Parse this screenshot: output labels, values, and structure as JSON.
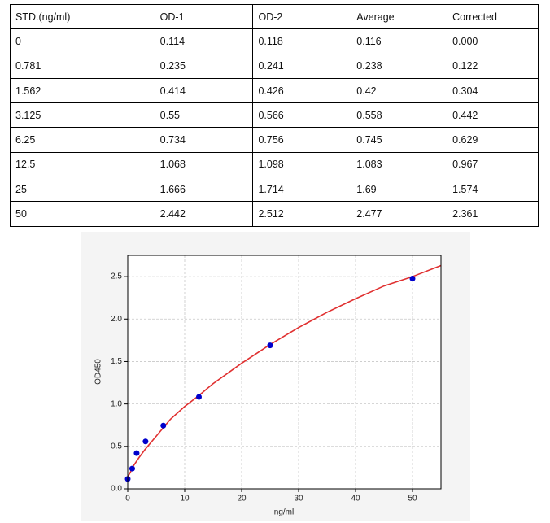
{
  "table": {
    "header": [
      "STD.(ng/ml)",
      "OD-1",
      "OD-2",
      "Average",
      "Corrected"
    ],
    "rows": [
      [
        "0",
        "0.114",
        "0.118",
        "0.116",
        "0.000"
      ],
      [
        "0.781",
        "0.235",
        "0.241",
        "0.238",
        "0.122"
      ],
      [
        "1.562",
        "0.414",
        "0.426",
        "0.42",
        "0.304"
      ],
      [
        "3.125",
        "0.55",
        "0.566",
        "0.558",
        "0.442"
      ],
      [
        "6.25",
        "0.734",
        "0.756",
        "0.745",
        "0.629"
      ],
      [
        "12.5",
        "1.068",
        "1.098",
        "1.083",
        "0.967"
      ],
      [
        "25",
        "1.666",
        "1.714",
        "1.69",
        "1.574"
      ],
      [
        "50",
        "2.442",
        "2.512",
        "2.477",
        "2.361"
      ]
    ]
  },
  "chart_data": {
    "type": "scatter",
    "xlabel": "ng/ml",
    "ylabel": "OD450",
    "xlim": [
      0,
      55
    ],
    "ylim": [
      0,
      2.75
    ],
    "xticks": [
      0,
      10,
      20,
      30,
      40,
      50
    ],
    "yticks": [
      {
        "value": 0,
        "label": "0.0"
      },
      0.5,
      {
        "value": 1,
        "label": "1.0"
      },
      1.5,
      {
        "value": 2,
        "label": "2.0"
      },
      2.5
    ],
    "grid": true,
    "series": [
      {
        "type": "scatter",
        "color": "#0000cc",
        "x": [
          0,
          0.781,
          1.562,
          3.125,
          6.25,
          12.5,
          25,
          50
        ],
        "values": [
          0.116,
          0.238,
          0.42,
          0.558,
          0.745,
          1.083,
          1.69,
          2.477
        ]
      },
      {
        "type": "line",
        "color": "#e03030",
        "x": [
          0,
          0.5,
          1,
          2,
          3,
          5,
          7.5,
          10,
          12.5,
          15,
          20,
          25,
          30,
          35,
          40,
          45,
          50,
          55
        ],
        "values": [
          0.14,
          0.2,
          0.27,
          0.37,
          0.46,
          0.62,
          0.82,
          0.97,
          1.1,
          1.24,
          1.48,
          1.7,
          1.9,
          2.08,
          2.24,
          2.39,
          2.5,
          2.63
        ]
      }
    ]
  }
}
